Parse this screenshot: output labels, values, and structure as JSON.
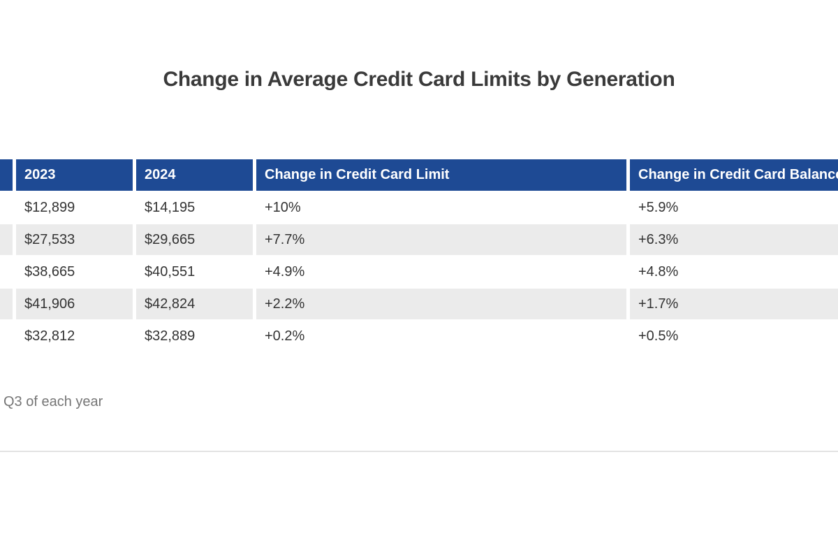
{
  "title": "Change in Average Credit Card Limits by Generation",
  "footnote": "Q3 of each year",
  "colors": {
    "header_bg": "#1e4a94",
    "header_text": "#ffffff",
    "row_alt_bg": "#ebebeb",
    "body_text": "#333333",
    "footnote_text": "#757575",
    "divider": "#e3e3e3"
  },
  "header": {
    "generation": "",
    "y2023": "2023",
    "y2024": "2024",
    "limit": "Change in Credit Card Limit",
    "balance": "Change in Credit Card Balance"
  },
  "rows": [
    {
      "y2023": "$12,899",
      "y2024": "$14,195",
      "limit": "+10%",
      "balance": "+5.9%"
    },
    {
      "y2023": "$27,533",
      "y2024": "$29,665",
      "limit": "+7.7%",
      "balance": "+6.3%"
    },
    {
      "y2023": "$38,665",
      "y2024": "$40,551",
      "limit": "+4.9%",
      "balance": "+4.8%"
    },
    {
      "y2023": "$41,906",
      "y2024": "$42,824",
      "limit": "+2.2%",
      "balance": "+1.7%"
    },
    {
      "y2023": "$32,812",
      "y2024": "$32,889",
      "limit": "+0.2%",
      "balance": "+0.5%"
    }
  ],
  "chart_data": {
    "type": "table",
    "title": "Change in Average Credit Card Limits by Generation",
    "columns": [
      "2023",
      "2024",
      "Change in Credit Card Limit",
      "Change in Credit Card Balance"
    ],
    "rows": [
      [
        "$12,899",
        "$14,195",
        "+10%",
        "+5.9%"
      ],
      [
        "$27,533",
        "$29,665",
        "+7.7%",
        "+6.3%"
      ],
      [
        "$38,665",
        "$40,551",
        "+4.9%",
        "+4.8%"
      ],
      [
        "$41,906",
        "$42,824",
        "+2.2%",
        "+1.7%"
      ],
      [
        "$32,812",
        "$32,889",
        "+0.2%",
        "+0.5%"
      ]
    ],
    "footnote": "Q3 of each year"
  }
}
